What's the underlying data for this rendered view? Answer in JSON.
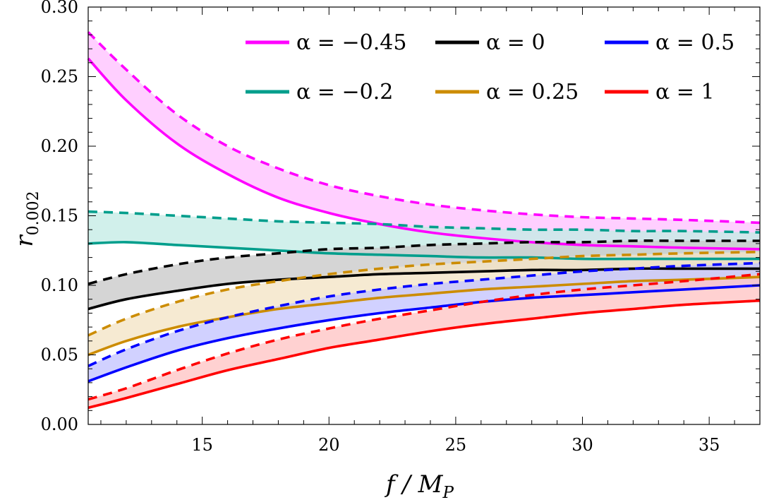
{
  "chart_data": {
    "type": "line",
    "xlabel": "f / M",
    "xlabel_sub": "P",
    "ylabel": "r",
    "ylabel_sub": "0.002",
    "xlim": [
      10.5,
      37
    ],
    "ylim": [
      0,
      0.3
    ],
    "xticks": [
      15,
      20,
      25,
      30,
      35
    ],
    "xtick_labels": [
      "15",
      "20",
      "25",
      "30",
      "35"
    ],
    "yticks": [
      0,
      0.05,
      0.1,
      0.15,
      0.2,
      0.25,
      0.3
    ],
    "ytick_labels": [
      "0.00",
      "0.05",
      "0.10",
      "0.15",
      "0.20",
      "0.25",
      "0.30"
    ],
    "x": [
      10.5,
      12,
      14,
      16,
      18,
      20,
      22,
      24,
      26,
      28,
      30,
      32,
      34,
      37
    ],
    "series": [
      {
        "name": "α = −0.45",
        "color": "#ff00ff",
        "fill": "#ffc2ff",
        "solid": [
          0.263,
          0.233,
          0.202,
          0.18,
          0.163,
          0.152,
          0.144,
          0.138,
          0.134,
          0.131,
          0.129,
          0.128,
          0.127,
          0.126
        ],
        "dashed": [
          0.282,
          0.255,
          0.223,
          0.2,
          0.184,
          0.172,
          0.164,
          0.158,
          0.154,
          0.151,
          0.149,
          0.148,
          0.147,
          0.145
        ]
      },
      {
        "name": "α = −0.2",
        "color": "#009e8c",
        "fill": "#c4ece6",
        "solid": [
          0.13,
          0.131,
          0.129,
          0.127,
          0.125,
          0.123,
          0.122,
          0.121,
          0.12,
          0.12,
          0.119,
          0.119,
          0.119,
          0.119
        ],
        "dashed": [
          0.153,
          0.152,
          0.15,
          0.148,
          0.146,
          0.145,
          0.144,
          0.142,
          0.141,
          0.14,
          0.14,
          0.139,
          0.139,
          0.138
        ]
      },
      {
        "name": "α = 0",
        "color": "#000000",
        "fill": "#c9c9c9",
        "solid": [
          0.083,
          0.09,
          0.096,
          0.101,
          0.104,
          0.106,
          0.108,
          0.109,
          0.11,
          0.111,
          0.111,
          0.112,
          0.112,
          0.112
        ],
        "dashed": [
          0.101,
          0.108,
          0.115,
          0.12,
          0.123,
          0.126,
          0.127,
          0.129,
          0.13,
          0.131,
          0.131,
          0.132,
          0.132,
          0.132
        ]
      },
      {
        "name": "α = 0.25",
        "color": "#cc8c00",
        "fill": "#f3e4c5",
        "solid": [
          0.05,
          0.06,
          0.07,
          0.077,
          0.083,
          0.087,
          0.091,
          0.094,
          0.097,
          0.099,
          0.101,
          0.103,
          0.104,
          0.106
        ],
        "dashed": [
          0.064,
          0.076,
          0.088,
          0.097,
          0.103,
          0.108,
          0.112,
          0.115,
          0.117,
          0.119,
          0.121,
          0.122,
          0.123,
          0.124
        ]
      },
      {
        "name": "α = 0.5",
        "color": "#0000ff",
        "fill": "#c4c4ff",
        "solid": [
          0.031,
          0.041,
          0.053,
          0.062,
          0.069,
          0.075,
          0.08,
          0.084,
          0.088,
          0.091,
          0.093,
          0.095,
          0.097,
          0.1
        ],
        "dashed": [
          0.042,
          0.054,
          0.067,
          0.077,
          0.085,
          0.092,
          0.097,
          0.101,
          0.104,
          0.107,
          0.11,
          0.112,
          0.114,
          0.116
        ]
      },
      {
        "name": "α = 1",
        "color": "#ff0000",
        "fill": "#ffc4c4",
        "solid": [
          0.012,
          0.019,
          0.029,
          0.039,
          0.047,
          0.055,
          0.061,
          0.067,
          0.072,
          0.076,
          0.08,
          0.083,
          0.086,
          0.089
        ],
        "dashed": [
          0.018,
          0.026,
          0.039,
          0.051,
          0.061,
          0.069,
          0.076,
          0.082,
          0.088,
          0.093,
          0.097,
          0.1,
          0.103,
          0.108
        ]
      }
    ],
    "legend_placement": "top-right"
  }
}
